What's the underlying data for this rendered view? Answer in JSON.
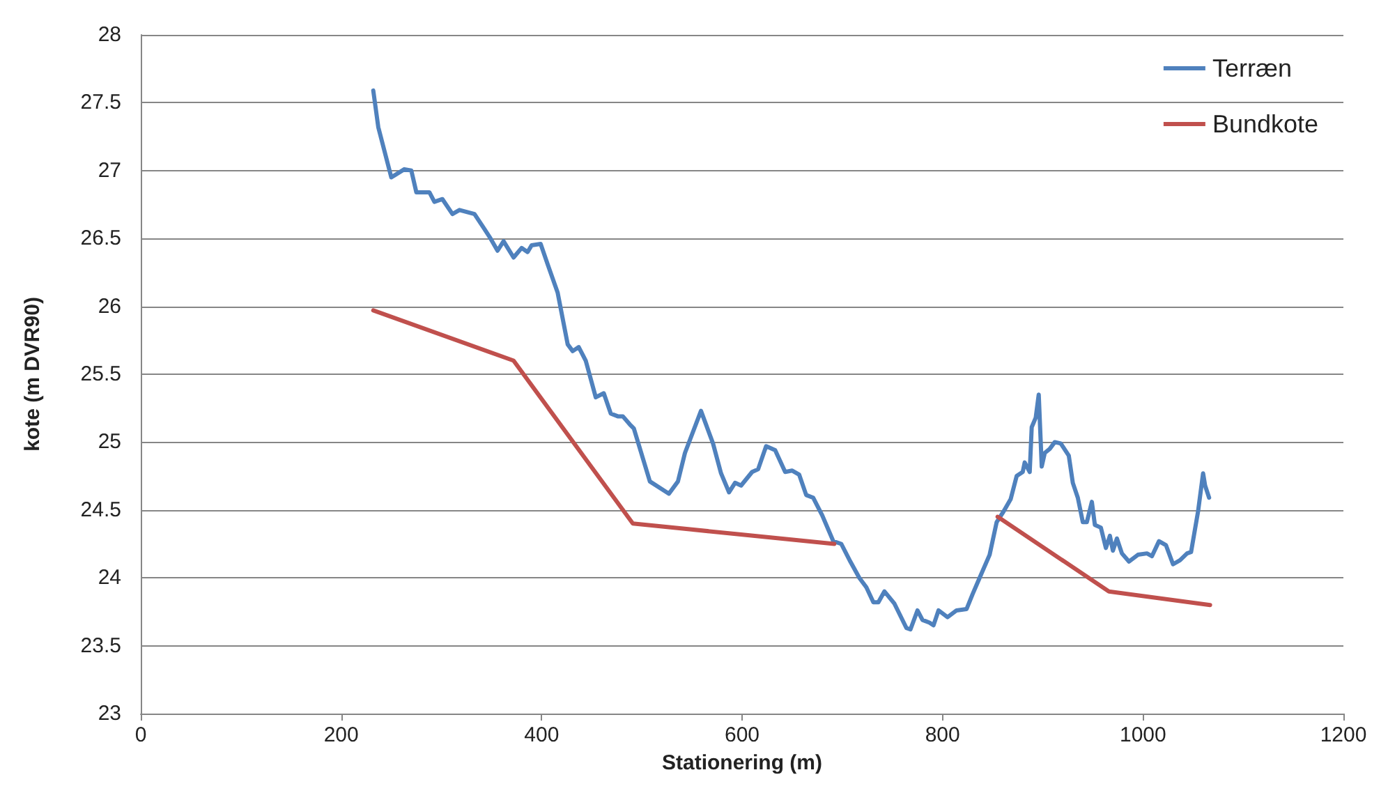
{
  "chart_data": {
    "type": "line",
    "xlabel": "Stationering (m)",
    "ylabel": "kote (m DVR90)",
    "xlim": [
      0,
      1200
    ],
    "xticks": [
      0,
      200,
      400,
      600,
      800,
      1000,
      1200
    ],
    "ylim": [
      23,
      28
    ],
    "yticks": [
      23,
      23.5,
      24,
      24.5,
      25,
      25.5,
      26,
      26.5,
      27,
      27.5,
      28
    ],
    "grid": "y",
    "legend": "top right",
    "marker": "none",
    "line_style": "solid",
    "series": [
      {
        "name": "Terræn",
        "color": "#4f81bd",
        "x": [
          232,
          237,
          250,
          263,
          270,
          275,
          288,
          293,
          301,
          311,
          318,
          333,
          342,
          349,
          356,
          362,
          372,
          380,
          386,
          390,
          399,
          406,
          416,
          426,
          431,
          437,
          444,
          454,
          462,
          469,
          476,
          481,
          488,
          492,
          508,
          527,
          536,
          543,
          559,
          571,
          579,
          587,
          593,
          599,
          610,
          616,
          624,
          633,
          643,
          650,
          657,
          664,
          671,
          680,
          691,
          699,
          708,
          717,
          724,
          731,
          736,
          742,
          752,
          764,
          768,
          775,
          780,
          787,
          791,
          796,
          805,
          814,
          824,
          830,
          837,
          847,
          854,
          861,
          868,
          874,
          880,
          882,
          887,
          889,
          893,
          896,
          899,
          902,
          907,
          912,
          918,
          926,
          930,
          935,
          940,
          944,
          949,
          952,
          958,
          963,
          967,
          970,
          974,
          979,
          986,
          995,
          1004,
          1009,
          1016,
          1023,
          1030,
          1037,
          1044,
          1048,
          1055,
          1060,
          1062,
          1066
        ],
        "values": [
          27.59,
          27.32,
          26.95,
          27.01,
          27.0,
          26.84,
          26.84,
          26.77,
          26.79,
          26.68,
          26.71,
          26.68,
          26.58,
          26.5,
          26.41,
          26.48,
          26.36,
          26.43,
          26.4,
          26.45,
          26.46,
          26.31,
          26.1,
          25.72,
          25.67,
          25.7,
          25.6,
          25.33,
          25.36,
          25.21,
          25.19,
          25.19,
          25.13,
          25.1,
          24.71,
          24.62,
          24.71,
          24.92,
          25.23,
          24.99,
          24.77,
          24.63,
          24.7,
          24.68,
          24.78,
          24.8,
          24.97,
          24.94,
          24.78,
          24.79,
          24.76,
          24.61,
          24.59,
          24.46,
          24.27,
          24.25,
          24.12,
          24.0,
          23.93,
          23.82,
          23.82,
          23.9,
          23.81,
          23.63,
          23.62,
          23.76,
          23.69,
          23.67,
          23.65,
          23.76,
          23.71,
          23.76,
          23.77,
          23.88,
          24.0,
          24.17,
          24.41,
          24.49,
          24.58,
          24.75,
          24.78,
          24.85,
          24.78,
          25.11,
          25.18,
          25.35,
          24.82,
          24.92,
          24.95,
          25.0,
          24.99,
          24.9,
          24.7,
          24.59,
          24.41,
          24.41,
          24.56,
          24.39,
          24.37,
          24.22,
          24.31,
          24.2,
          24.29,
          24.18,
          24.12,
          24.17,
          24.18,
          24.16,
          24.27,
          24.24,
          24.1,
          24.13,
          24.18,
          24.19,
          24.49,
          24.77,
          24.68,
          24.59
        ]
      },
      {
        "name": "Bundkote",
        "color": "#c0504d",
        "x": [
          232,
          372,
          491,
          692,
          770,
          855,
          966,
          1067
        ],
        "values": [
          25.97,
          25.6,
          24.4,
          24.25,
          null,
          24.45,
          23.9,
          23.8
        ]
      }
    ]
  }
}
